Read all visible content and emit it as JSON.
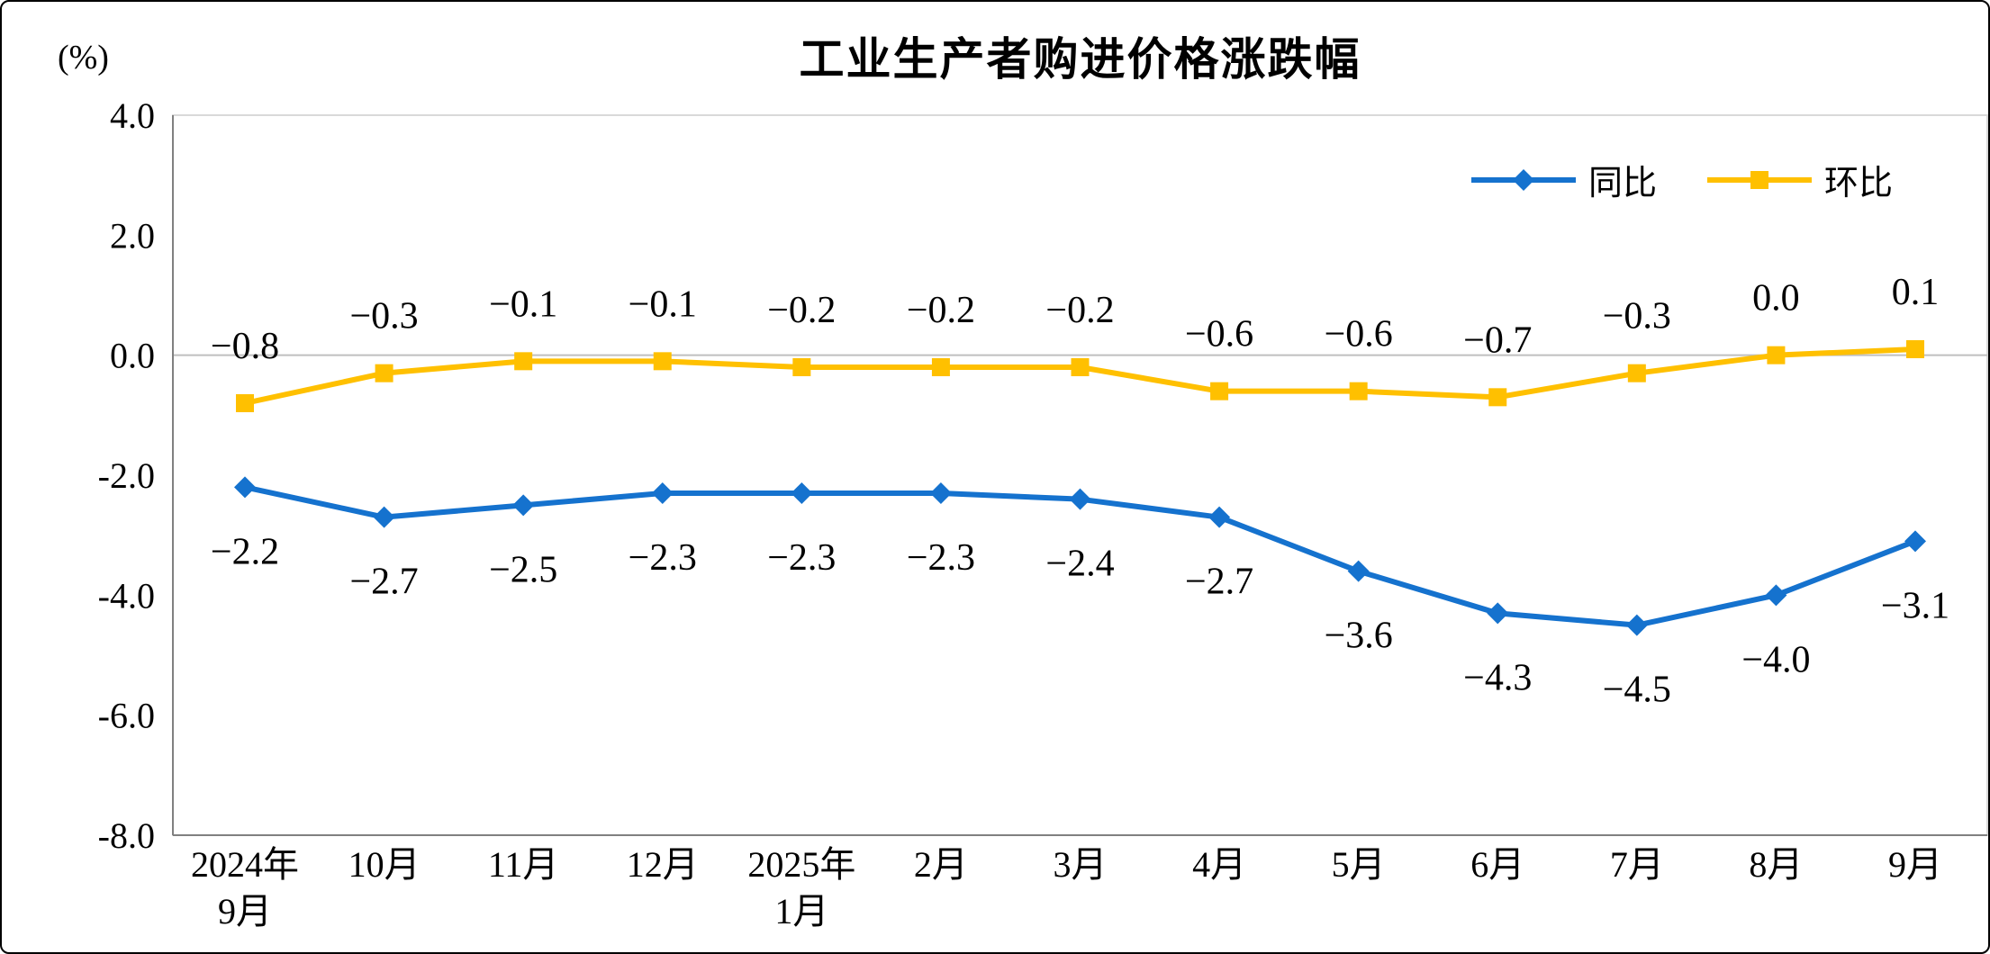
{
  "page": {
    "background_color": "#ffffff",
    "frame_border_color": "#000000"
  },
  "chart_data": {
    "type": "line",
    "title": "工业生产者购进价格涨跌幅",
    "unit_label": "(%)",
    "categories": [
      "2024年\n9月",
      "10月",
      "11月",
      "12月",
      "2025年\n1月",
      "2月",
      "3月",
      "4月",
      "5月",
      "6月",
      "7月",
      "8月",
      "9月"
    ],
    "series": [
      {
        "name": "同比",
        "color": "#1572CE",
        "marker": "diamond",
        "label_position": "below",
        "values": [
          -2.2,
          -2.7,
          -2.5,
          -2.3,
          -2.3,
          -2.3,
          -2.4,
          -2.7,
          -3.6,
          -4.3,
          -4.5,
          -4.0,
          -3.1
        ],
        "labels": [
          "−2.2",
          "−2.7",
          "−2.5",
          "−2.3",
          "−2.3",
          "−2.3",
          "−2.4",
          "−2.7",
          "−3.6",
          "−4.3",
          "−4.5",
          "−4.0",
          "−3.1"
        ]
      },
      {
        "name": "环比",
        "color": "#FFC000",
        "marker": "square",
        "label_position": "above",
        "values": [
          -0.8,
          -0.3,
          -0.1,
          -0.1,
          -0.2,
          -0.2,
          -0.2,
          -0.6,
          -0.6,
          -0.7,
          -0.3,
          0.0,
          0.1
        ],
        "labels": [
          "−0.8",
          "−0.3",
          "−0.1",
          "−0.1",
          "−0.2",
          "−0.2",
          "−0.2",
          "−0.6",
          "−0.6",
          "−0.7",
          "−0.3",
          "0.0",
          "0.1"
        ]
      }
    ],
    "ylim": [
      -8,
      4
    ],
    "yticks": [
      4.0,
      2.0,
      0.0,
      -2.0,
      -4.0,
      -6.0,
      -8.0
    ],
    "ytick_labels": [
      "4.0",
      "2.0",
      "0.0",
      "-2.0",
      "-4.0",
      "-6.0",
      "-8.0"
    ],
    "grid": false,
    "legend_position": "top-right",
    "axis_color": "#808080",
    "plot_border_color": "#D9D9D9",
    "zero_line_color": "#BFBFBF"
  }
}
